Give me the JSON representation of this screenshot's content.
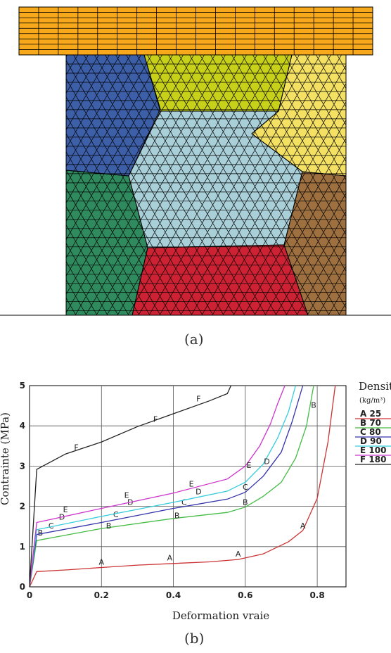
{
  "figure_a": {
    "caption": "(a)",
    "colors": {
      "top_plate": "#f7a81b",
      "blue": "#3d5fa8",
      "lime": "#c8d11a",
      "yellow": "#f4e164",
      "lightblue": "#a9cfd8",
      "green": "#2f8a5e",
      "red": "#cc2233",
      "brown": "#9e7040"
    }
  },
  "figure_b": {
    "caption": "(b)",
    "legend_title": "Densit",
    "legend_unit": "(kg/m³)"
  },
  "chart_data": {
    "type": "line",
    "title": "",
    "xlabel": "Deformation vraie",
    "ylabel": "Contrainte (MPa)",
    "xlim": [
      0,
      0.88
    ],
    "ylim": [
      0,
      5
    ],
    "xticks": [
      "0",
      "0.2",
      "0.4",
      "0.6",
      "0.8"
    ],
    "yticks": [
      "0",
      "1",
      "2",
      "3",
      "4",
      "5"
    ],
    "grid": true,
    "legend_position": "right",
    "series": [
      {
        "name": "A",
        "density": "25",
        "color": "#cc3333",
        "x": [
          0,
          0.02,
          0.1,
          0.2,
          0.3,
          0.4,
          0.5,
          0.58,
          0.65,
          0.72,
          0.76,
          0.8,
          0.83,
          0.85
        ],
        "y": [
          0,
          0.38,
          0.42,
          0.48,
          0.54,
          0.58,
          0.62,
          0.68,
          0.82,
          1.12,
          1.4,
          2.2,
          3.6,
          5.0
        ],
        "labels_at": [
          [
            0.2,
            0.5
          ],
          [
            0.39,
            0.6
          ],
          [
            0.58,
            0.7
          ],
          [
            0.76,
            1.4
          ]
        ]
      },
      {
        "name": "B",
        "density": "70",
        "color": "#44bb44",
        "x": [
          0,
          0.02,
          0.2,
          0.4,
          0.55,
          0.6,
          0.65,
          0.7,
          0.74,
          0.77,
          0.79
        ],
        "y": [
          0,
          1.15,
          1.45,
          1.7,
          1.85,
          1.98,
          2.25,
          2.6,
          3.2,
          4.0,
          5.0
        ],
        "labels_at": [
          [
            0.03,
            1.22
          ],
          [
            0.22,
            1.4
          ],
          [
            0.41,
            1.65
          ],
          [
            0.6,
            1.98
          ],
          [
            0.79,
            4.4
          ]
        ]
      },
      {
        "name": "C",
        "density": "80",
        "color": "#3333aa",
        "x": [
          0,
          0.02,
          0.2,
          0.4,
          0.55,
          0.6,
          0.65,
          0.7,
          0.73,
          0.76
        ],
        "y": [
          0,
          1.3,
          1.6,
          1.95,
          2.18,
          2.35,
          2.75,
          3.35,
          4.1,
          5.0
        ],
        "labels_at": [
          [
            0.06,
            1.4
          ],
          [
            0.24,
            1.68
          ],
          [
            0.43,
            1.98
          ],
          [
            0.6,
            2.36
          ]
        ]
      },
      {
        "name": "D",
        "density": "90",
        "color": "#33ccdd",
        "x": [
          0,
          0.02,
          0.2,
          0.4,
          0.55,
          0.6,
          0.65,
          0.69,
          0.72,
          0.74
        ],
        "y": [
          0,
          1.42,
          1.75,
          2.1,
          2.38,
          2.6,
          3.05,
          3.7,
          4.35,
          5.0
        ],
        "labels_at": [
          [
            0.09,
            1.62
          ],
          [
            0.28,
            1.98
          ],
          [
            0.47,
            2.25
          ],
          [
            0.66,
            3.0
          ]
        ]
      },
      {
        "name": "E",
        "density": "100",
        "color": "#cc33cc",
        "x": [
          0,
          0.02,
          0.2,
          0.4,
          0.55,
          0.6,
          0.64,
          0.67,
          0.69,
          0.71
        ],
        "y": [
          0,
          1.6,
          1.95,
          2.33,
          2.68,
          3.0,
          3.5,
          4.05,
          4.55,
          5.0
        ],
        "labels_at": [
          [
            0.1,
            1.8
          ],
          [
            0.27,
            2.16
          ],
          [
            0.45,
            2.44
          ],
          [
            0.61,
            2.9
          ]
        ]
      },
      {
        "name": "F",
        "density": "180",
        "color": "#222222",
        "x": [
          0,
          0.02,
          0.1,
          0.2,
          0.3,
          0.4,
          0.5,
          0.55,
          0.56
        ],
        "y": [
          0,
          2.92,
          3.3,
          3.6,
          3.98,
          4.3,
          4.62,
          4.8,
          5.0
        ],
        "labels_at": [
          [
            0.13,
            3.35
          ],
          [
            0.35,
            4.05
          ],
          [
            0.47,
            4.55
          ]
        ]
      }
    ]
  }
}
